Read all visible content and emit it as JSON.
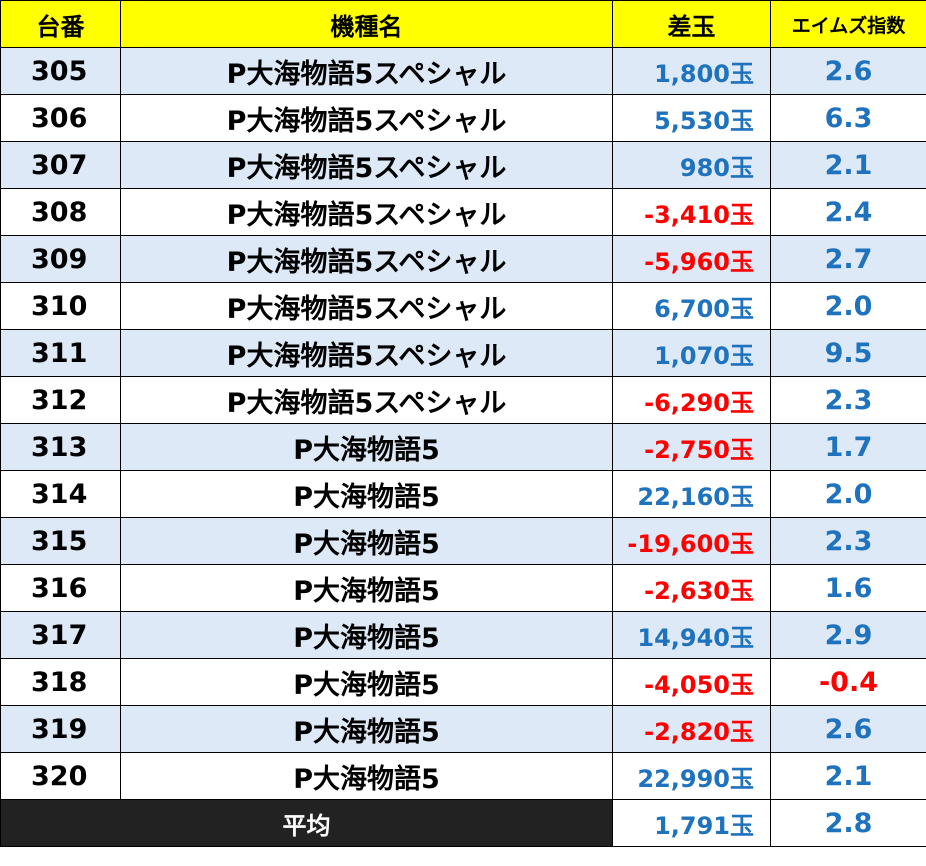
{
  "header": {
    "machine_no": "台番",
    "model": "機種名",
    "diff": "差玉",
    "index": "エイムズ指数"
  },
  "colors": {
    "positive": "#1f72bd",
    "negative": "#ff0000",
    "header_bg": "#ffff00",
    "alt_row_bg": "#dde9f6",
    "average_bg": "#222222"
  },
  "rows": [
    {
      "no": "305",
      "model": "P大海物語5スペシャル",
      "diff": "1,800玉",
      "index": "2.6"
    },
    {
      "no": "306",
      "model": "P大海物語5スペシャル",
      "diff": "5,530玉",
      "index": "6.3"
    },
    {
      "no": "307",
      "model": "P大海物語5スペシャル",
      "diff": "980玉",
      "index": "2.1"
    },
    {
      "no": "308",
      "model": "P大海物語5スペシャル",
      "diff": "-3,410玉",
      "index": "2.4"
    },
    {
      "no": "309",
      "model": "P大海物語5スペシャル",
      "diff": "-5,960玉",
      "index": "2.7"
    },
    {
      "no": "310",
      "model": "P大海物語5スペシャル",
      "diff": "6,700玉",
      "index": "2.0"
    },
    {
      "no": "311",
      "model": "P大海物語5スペシャル",
      "diff": "1,070玉",
      "index": "9.5"
    },
    {
      "no": "312",
      "model": "P大海物語5スペシャル",
      "diff": "-6,290玉",
      "index": "2.3"
    },
    {
      "no": "313",
      "model": "P大海物語5",
      "diff": "-2,750玉",
      "index": "1.7"
    },
    {
      "no": "314",
      "model": "P大海物語5",
      "diff": "22,160玉",
      "index": "2.0"
    },
    {
      "no": "315",
      "model": "P大海物語5",
      "diff": "-19,600玉",
      "index": "2.3"
    },
    {
      "no": "316",
      "model": "P大海物語5",
      "diff": "-2,630玉",
      "index": "1.6"
    },
    {
      "no": "317",
      "model": "P大海物語5",
      "diff": "14,940玉",
      "index": "2.9"
    },
    {
      "no": "318",
      "model": "P大海物語5",
      "diff": "-4,050玉",
      "index": "-0.4"
    },
    {
      "no": "319",
      "model": "P大海物語5",
      "diff": "-2,820玉",
      "index": "2.6"
    },
    {
      "no": "320",
      "model": "P大海物語5",
      "diff": "22,990玉",
      "index": "2.1"
    }
  ],
  "average": {
    "label": "平均",
    "diff": "1,791玉",
    "index": "2.8"
  }
}
